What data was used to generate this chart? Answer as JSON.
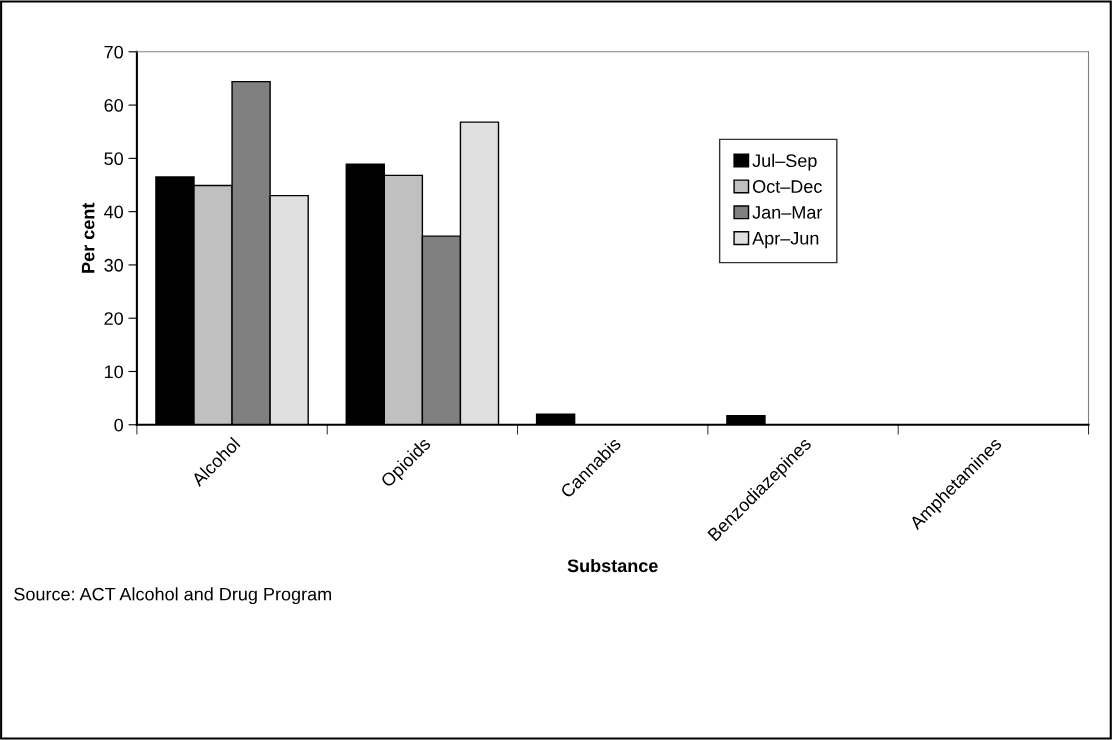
{
  "chart_data": {
    "type": "bar",
    "xlabel": "Substance",
    "ylabel": "Per cent",
    "categories": [
      "Alcohol",
      "Opioids",
      "Cannabis",
      "Benzodiazepines",
      "Amphetamines"
    ],
    "series": [
      {
        "name": "Jul–Sep",
        "color": "#000000",
        "values": [
          46.5,
          48.9,
          2.0,
          1.7,
          0
        ]
      },
      {
        "name": "Oct–Dec",
        "color": "#c0c0c0",
        "values": [
          44.9,
          46.8,
          0,
          0,
          0
        ]
      },
      {
        "name": "Jan–Mar",
        "color": "#808080",
        "values": [
          64.4,
          35.4,
          0,
          0,
          0
        ]
      },
      {
        "name": "Apr–Jun",
        "color": "#e0e0e0",
        "values": [
          43.0,
          56.8,
          0,
          0,
          0
        ]
      }
    ],
    "ylim": [
      0,
      70
    ],
    "yticks": [
      0,
      10,
      20,
      30,
      40,
      50,
      60,
      70
    ],
    "grid": false,
    "legend": "right",
    "annotations": [
      "Source: ACT Alcohol and Drug Program"
    ]
  }
}
